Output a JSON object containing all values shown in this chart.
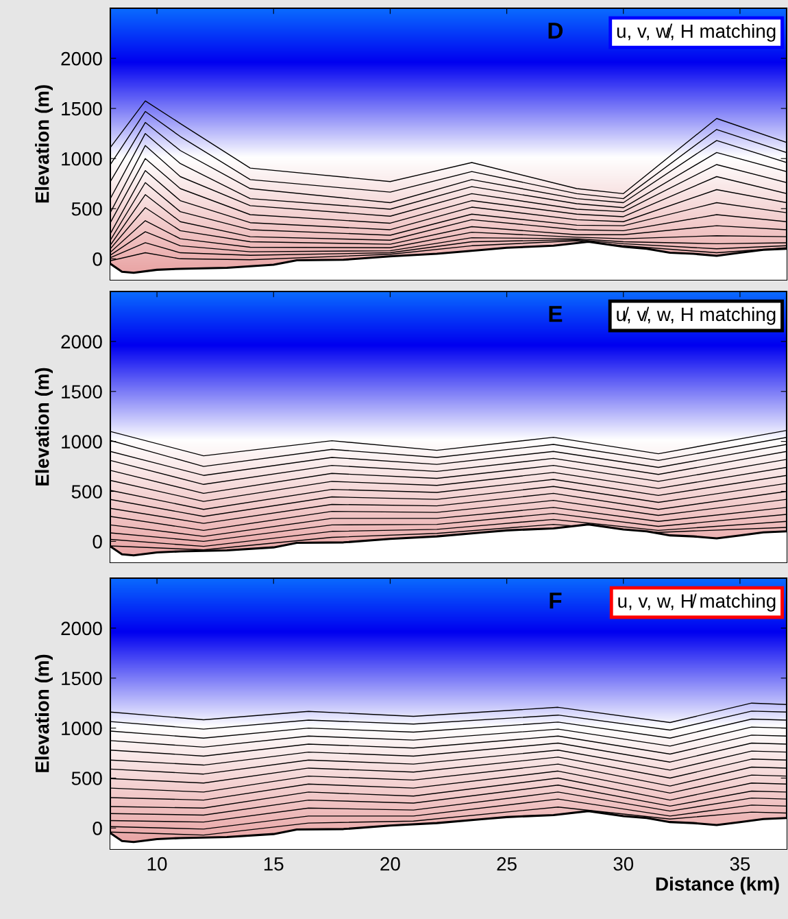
{
  "chart_data": [
    {
      "type": "line",
      "title": "D",
      "ylabel": "Elevation (m)",
      "annotations": [
        "u, v, w̸, H matching"
      ],
      "xlim": [
        8,
        37
      ],
      "ylim": [
        -210,
        2500
      ],
      "xticks": [
        10,
        15,
        20,
        25,
        30,
        35
      ],
      "yticks": [
        0,
        500,
        1000,
        1500,
        2000
      ],
      "tick_labels": "y",
      "x": [
        8,
        9.5,
        11,
        14,
        20,
        23.5,
        28,
        30,
        34,
        37
      ],
      "series": [
        {
          "color": "#000000",
          "values": [
            1110,
            1575,
            1350,
            905,
            770,
            960,
            700,
            650,
            1400,
            1160
          ]
        },
        {
          "color": "#000000",
          "values": [
            940,
            1470,
            1220,
            790,
            665,
            870,
            650,
            600,
            1290,
            1060
          ]
        },
        {
          "color": "#000000",
          "values": [
            770,
            1360,
            1080,
            700,
            560,
            790,
            600,
            560,
            1180,
            960
          ]
        },
        {
          "color": "#000000",
          "values": [
            600,
            1250,
            950,
            600,
            495,
            720,
            550,
            510,
            1060,
            870
          ]
        },
        {
          "color": "#000000",
          "values": [
            460,
            1130,
            820,
            530,
            425,
            650,
            495,
            470,
            940,
            760
          ]
        },
        {
          "color": "#000000",
          "values": [
            360,
            1000,
            700,
            440,
            355,
            580,
            445,
            420,
            820,
            650
          ]
        },
        {
          "color": "#000000",
          "values": [
            250,
            880,
            580,
            360,
            290,
            515,
            390,
            370,
            690,
            560
          ]
        },
        {
          "color": "#000000",
          "values": [
            185,
            760,
            470,
            290,
            235,
            445,
            335,
            330,
            560,
            460
          ]
        },
        {
          "color": "#000000",
          "values": [
            135,
            640,
            370,
            220,
            185,
            390,
            290,
            280,
            440,
            370
          ]
        },
        {
          "color": "#000000",
          "values": [
            100,
            510,
            280,
            170,
            145,
            320,
            240,
            240,
            330,
            290
          ]
        },
        {
          "color": "#000000",
          "values": [
            65,
            380,
            200,
            115,
            110,
            265,
            215,
            200,
            230,
            220
          ]
        },
        {
          "color": "#000000",
          "values": [
            35,
            270,
            130,
            70,
            80,
            210,
            200,
            170,
            150,
            160
          ]
        },
        {
          "color": "#000000",
          "values": [
            10,
            160,
            60,
            35,
            60,
            170,
            190,
            150,
            100,
            130
          ]
        },
        {
          "color": "#000000",
          "values": [
            -20,
            60,
            0,
            -10,
            45,
            130,
            180,
            130,
            60,
            110
          ]
        },
        {
          "type": "line",
          "color": "#000000",
          "x": [
            8,
            8.5,
            9,
            10,
            11,
            13,
            15,
            16,
            18,
            20,
            22,
            24,
            25,
            26,
            27,
            28.5,
            30,
            31,
            32,
            33,
            34,
            35,
            36,
            37
          ],
          "values": [
            -50,
            -130,
            -140,
            -110,
            -100,
            -90,
            -60,
            -15,
            -10,
            25,
            50,
            90,
            110,
            120,
            130,
            170,
            120,
            100,
            60,
            50,
            30,
            60,
            90,
            100
          ]
        }
      ]
    },
    {
      "type": "line",
      "title": "E",
      "ylabel": "Elevation (m)",
      "annotations": [
        "u̸, v̸, w, H matching"
      ],
      "xlim": [
        8,
        37
      ],
      "ylim": [
        -210,
        2500
      ],
      "xticks": [
        10,
        15,
        20,
        25,
        30,
        35
      ],
      "yticks": [
        0,
        500,
        1000,
        1500,
        2000
      ],
      "tick_labels": "y",
      "x": [
        8,
        12,
        17.5,
        22,
        27,
        31.5,
        37
      ],
      "series": [
        {
          "color": "#000000",
          "values": [
            1100,
            856,
            1007,
            911,
            1041,
            877,
            1110
          ]
        },
        {
          "color": "#000000",
          "values": [
            1010,
            750,
            920,
            840,
            970,
            810,
            1040
          ]
        },
        {
          "color": "#000000",
          "values": [
            900,
            660,
            840,
            770,
            900,
            740,
            970
          ]
        },
        {
          "color": "#000000",
          "values": [
            810,
            570,
            760,
            700,
            830,
            670,
            900
          ]
        },
        {
          "color": "#000000",
          "values": [
            710,
            480,
            680,
            630,
            760,
            600,
            820
          ]
        },
        {
          "color": "#000000",
          "values": [
            610,
            400,
            600,
            560,
            690,
            530,
            740
          ]
        },
        {
          "color": "#000000",
          "values": [
            510,
            320,
            520,
            490,
            620,
            460,
            660
          ]
        },
        {
          "color": "#000000",
          "values": [
            420,
            250,
            445,
            420,
            550,
            390,
            580
          ]
        },
        {
          "color": "#000000",
          "values": [
            330,
            180,
            370,
            355,
            480,
            320,
            500
          ]
        },
        {
          "color": "#000000",
          "values": [
            250,
            110,
            300,
            290,
            410,
            260,
            420
          ]
        },
        {
          "color": "#000000",
          "values": [
            165,
            50,
            230,
            230,
            340,
            200,
            340
          ]
        },
        {
          "color": "#000000",
          "values": [
            85,
            0,
            165,
            170,
            280,
            150,
            270
          ]
        },
        {
          "color": "#000000",
          "values": [
            20,
            -50,
            100,
            120,
            220,
            110,
            200
          ]
        },
        {
          "color": "#000000",
          "values": [
            -45,
            -85,
            40,
            80,
            170,
            90,
            140
          ]
        },
        {
          "type": "line",
          "color": "#000000",
          "x": [
            8,
            8.5,
            9,
            10,
            11,
            13,
            15,
            16,
            18,
            20,
            22,
            24,
            25,
            26,
            27,
            28.5,
            30,
            31,
            32,
            33,
            34,
            35,
            36,
            37
          ],
          "values": [
            -50,
            -130,
            -140,
            -110,
            -100,
            -90,
            -60,
            -15,
            -10,
            25,
            50,
            90,
            110,
            120,
            130,
            170,
            120,
            100,
            60,
            50,
            30,
            60,
            90,
            100
          ]
        }
      ]
    },
    {
      "type": "line",
      "title": "F",
      "xlabel": "Distance (km)",
      "ylabel": "Elevation (m)",
      "annotations": [
        "u, v, w, H̸ matching"
      ],
      "xlim": [
        8,
        37
      ],
      "ylim": [
        -210,
        2500
      ],
      "xticks": [
        10,
        15,
        20,
        25,
        30,
        35
      ],
      "yticks": [
        0,
        500,
        1000,
        1500,
        2000
      ],
      "x": [
        8,
        12,
        16.5,
        21,
        27.2,
        32,
        35.5,
        37
      ],
      "series": [
        {
          "color": "#000000",
          "values": [
            1160,
            1083,
            1167,
            1118,
            1208,
            1056,
            1250,
            1236
          ]
        },
        {
          "color": "#000000",
          "values": [
            1065,
            990,
            1080,
            1040,
            1130,
            980,
            1170,
            1160
          ]
        },
        {
          "color": "#000000",
          "values": [
            970,
            900,
            1000,
            960,
            1060,
            900,
            1090,
            1080
          ]
        },
        {
          "color": "#000000",
          "values": [
            875,
            810,
            920,
            880,
            990,
            820,
            1010,
            1000
          ]
        },
        {
          "color": "#000000",
          "values": [
            780,
            720,
            840,
            800,
            920,
            740,
            930,
            920
          ]
        },
        {
          "color": "#000000",
          "values": [
            680,
            630,
            760,
            720,
            850,
            660,
            850,
            840
          ]
        },
        {
          "color": "#000000",
          "values": [
            590,
            540,
            680,
            640,
            780,
            580,
            770,
            760
          ]
        },
        {
          "color": "#000000",
          "values": [
            495,
            450,
            600,
            560,
            710,
            500,
            690,
            680
          ]
        },
        {
          "color": "#000000",
          "values": [
            400,
            360,
            520,
            480,
            640,
            420,
            610,
            600
          ]
        },
        {
          "color": "#000000",
          "values": [
            305,
            280,
            440,
            400,
            570,
            350,
            530,
            520
          ]
        },
        {
          "color": "#000000",
          "values": [
            215,
            200,
            360,
            320,
            500,
            280,
            450,
            440
          ]
        },
        {
          "color": "#000000",
          "values": [
            145,
            130,
            280,
            250,
            430,
            220,
            370,
            360
          ]
        },
        {
          "color": "#000000",
          "values": [
            75,
            60,
            200,
            180,
            360,
            170,
            300,
            290
          ]
        },
        {
          "color": "#000000",
          "values": [
            15,
            -10,
            120,
            120,
            290,
            120,
            230,
            220
          ]
        },
        {
          "color": "#000000",
          "values": [
            -40,
            -70,
            50,
            70,
            210,
            90,
            160,
            150
          ]
        },
        {
          "type": "line",
          "color": "#000000",
          "x": [
            8,
            8.5,
            9,
            10,
            11,
            13,
            15,
            16,
            18,
            20,
            22,
            24,
            25,
            26,
            27,
            28.5,
            30,
            31,
            32,
            33,
            34,
            35,
            36,
            37
          ],
          "values": [
            -50,
            -130,
            -140,
            -110,
            -100,
            -90,
            -60,
            -15,
            -10,
            25,
            50,
            90,
            110,
            120,
            130,
            170,
            120,
            100,
            60,
            50,
            30,
            60,
            90,
            100
          ]
        }
      ]
    }
  ]
}
